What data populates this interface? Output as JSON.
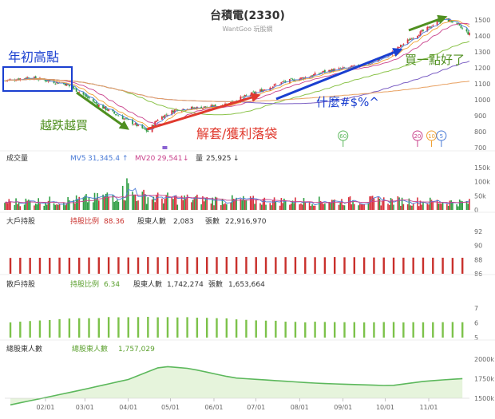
{
  "header": {
    "title": "台積電(2330)",
    "subtitle": "WantGoo 玩股網"
  },
  "annotations": {
    "early_high": "年初高點",
    "buy_on_dip": "越跌越買",
    "unwind": "解套/獲利落袋",
    "what": "什麼#$%^",
    "buy_one": "買一點好了"
  },
  "markers": [
    {
      "label": "60",
      "color": "#5cb85c",
      "x": "2022-09-01"
    },
    {
      "label": "20",
      "color": "#c9418b",
      "x": "2022-10-24"
    },
    {
      "label": "10",
      "color": "#f0a030",
      "x": "2022-11-03"
    },
    {
      "label": "5",
      "color": "#4a7bd6",
      "x": "2022-11-10"
    }
  ],
  "sections": {
    "volume": {
      "title": "成交量",
      "mv5_label": "MV5",
      "mv5_value": "31,345.4",
      "mv5_arrow": "↑",
      "mv20_label": "MV20",
      "mv20_value": "29,541",
      "mv20_arrow": "↓",
      "vol_label": "量",
      "vol_value": "25,925",
      "vol_arrow": "↓"
    },
    "big_holders": {
      "title": "大戶持股",
      "ratio_label": "持股比例",
      "ratio_value": "88.36",
      "holders_label": "股東人數",
      "holders_value": "2,083",
      "shares_label": "張數",
      "shares_value": "22,916,970"
    },
    "retail": {
      "title": "散戶持股",
      "ratio_label": "持股比例",
      "ratio_value": "6.34",
      "holders_label": "股東人數",
      "holders_value": "1,742,274",
      "shares_label": "張數",
      "shares_value": "1,653,664"
    },
    "total": {
      "title": "總股東人數",
      "label": "總股東人數",
      "value": "1,757,029"
    }
  },
  "x_ticks": [
    "02/01",
    "03/01",
    "04/01",
    "05/01",
    "06/01",
    "07/01",
    "08/01",
    "09/01",
    "10/01",
    "11/01"
  ],
  "colors": {
    "up": "#d9333f",
    "down": "#2f9e44",
    "mv5": "#4a7bd6",
    "mv20": "#c9418b",
    "ma": "#f0a030",
    "ma_long": "#8bc34a",
    "ma_year": "#e8a060",
    "ma_purple": "#7b5fc4",
    "big": "#c9302c",
    "retail": "#7cc24a",
    "total": "#5cb85c"
  },
  "chart_data": [
    {
      "type": "candlestick",
      "title": "台積電(2330)",
      "x_range": [
        "2022-01-03",
        "2022-11-30"
      ],
      "ylim": [
        700,
        1550
      ],
      "y_ticks": [
        700,
        800,
        900,
        1000,
        1100,
        1200,
        1300,
        1400,
        1500
      ],
      "grid": false,
      "close_keypoints": [
        {
          "date": "2022-01-03",
          "value": 1120
        },
        {
          "date": "2022-01-20",
          "value": 1140
        },
        {
          "date": "2022-02-15",
          "value": 1100
        },
        {
          "date": "2022-02-25",
          "value": 1050
        },
        {
          "date": "2022-03-10",
          "value": 970
        },
        {
          "date": "2022-03-25",
          "value": 900
        },
        {
          "date": "2022-04-05",
          "value": 850
        },
        {
          "date": "2022-04-15",
          "value": 800
        },
        {
          "date": "2022-04-22",
          "value": 880
        },
        {
          "date": "2022-05-05",
          "value": 940
        },
        {
          "date": "2022-05-20",
          "value": 950
        },
        {
          "date": "2022-06-05",
          "value": 960
        },
        {
          "date": "2022-06-20",
          "value": 1010
        },
        {
          "date": "2022-07-05",
          "value": 1060
        },
        {
          "date": "2022-07-20",
          "value": 1110
        },
        {
          "date": "2022-08-05",
          "value": 1140
        },
        {
          "date": "2022-08-20",
          "value": 1180
        },
        {
          "date": "2022-09-05",
          "value": 1200
        },
        {
          "date": "2022-09-20",
          "value": 1230
        },
        {
          "date": "2022-10-05",
          "value": 1290
        },
        {
          "date": "2022-10-20",
          "value": 1390
        },
        {
          "date": "2022-11-01",
          "value": 1450
        },
        {
          "date": "2022-11-10",
          "value": 1510
        },
        {
          "date": "2022-11-18",
          "value": 1490
        },
        {
          "date": "2022-11-30",
          "value": 1410
        }
      ]
    },
    {
      "type": "bar",
      "title": "成交量",
      "unit": "k",
      "ylim": [
        0,
        150
      ],
      "y_ticks": [
        0,
        50,
        100,
        150
      ],
      "series": [
        {
          "name": "MV5",
          "value": 31345.4
        },
        {
          "name": "MV20",
          "value": 29541
        },
        {
          "name": "量",
          "value": 25925
        }
      ],
      "volume_profile": [
        {
          "date": "2022-01-03",
          "value": 28
        },
        {
          "date": "2022-02-15",
          "value": 32
        },
        {
          "date": "2022-03-10",
          "value": 40
        },
        {
          "date": "2022-03-28",
          "value": 60
        },
        {
          "date": "2022-04-20",
          "value": 42
        },
        {
          "date": "2022-06-01",
          "value": 35
        },
        {
          "date": "2022-08-01",
          "value": 30
        },
        {
          "date": "2022-10-01",
          "value": 33
        },
        {
          "date": "2022-11-30",
          "value": 26
        }
      ]
    },
    {
      "type": "bar",
      "title": "大戶持股",
      "series_name": "持股比例",
      "ylim": [
        86,
        92
      ],
      "y_ticks": [
        86,
        88,
        90,
        92
      ],
      "last_value": 88.36
    },
    {
      "type": "bar",
      "title": "散戶持股",
      "series_name": "持股比例",
      "ylim": [
        5,
        7
      ],
      "y_ticks": [
        5,
        6,
        7
      ],
      "last_value": 6.34
    },
    {
      "type": "line",
      "title": "總股東人數",
      "ylim": [
        1500,
        2000
      ],
      "y_ticks": [
        1500,
        1750,
        2000
      ],
      "y_tick_labels": [
        "1500k",
        "1750k",
        "2000k"
      ],
      "values": [
        {
          "date": "2022-01-03",
          "value": 1400
        },
        {
          "date": "2022-02-25",
          "value": 1600
        },
        {
          "date": "2022-04-01",
          "value": 1740
        },
        {
          "date": "2022-04-25",
          "value": 1910
        },
        {
          "date": "2022-05-15",
          "value": 1880
        },
        {
          "date": "2022-06-15",
          "value": 1760
        },
        {
          "date": "2022-08-15",
          "value": 1690
        },
        {
          "date": "2022-10-05",
          "value": 1660
        },
        {
          "date": "2022-10-30",
          "value": 1720
        },
        {
          "date": "2022-11-30",
          "value": 1757
        }
      ]
    }
  ]
}
